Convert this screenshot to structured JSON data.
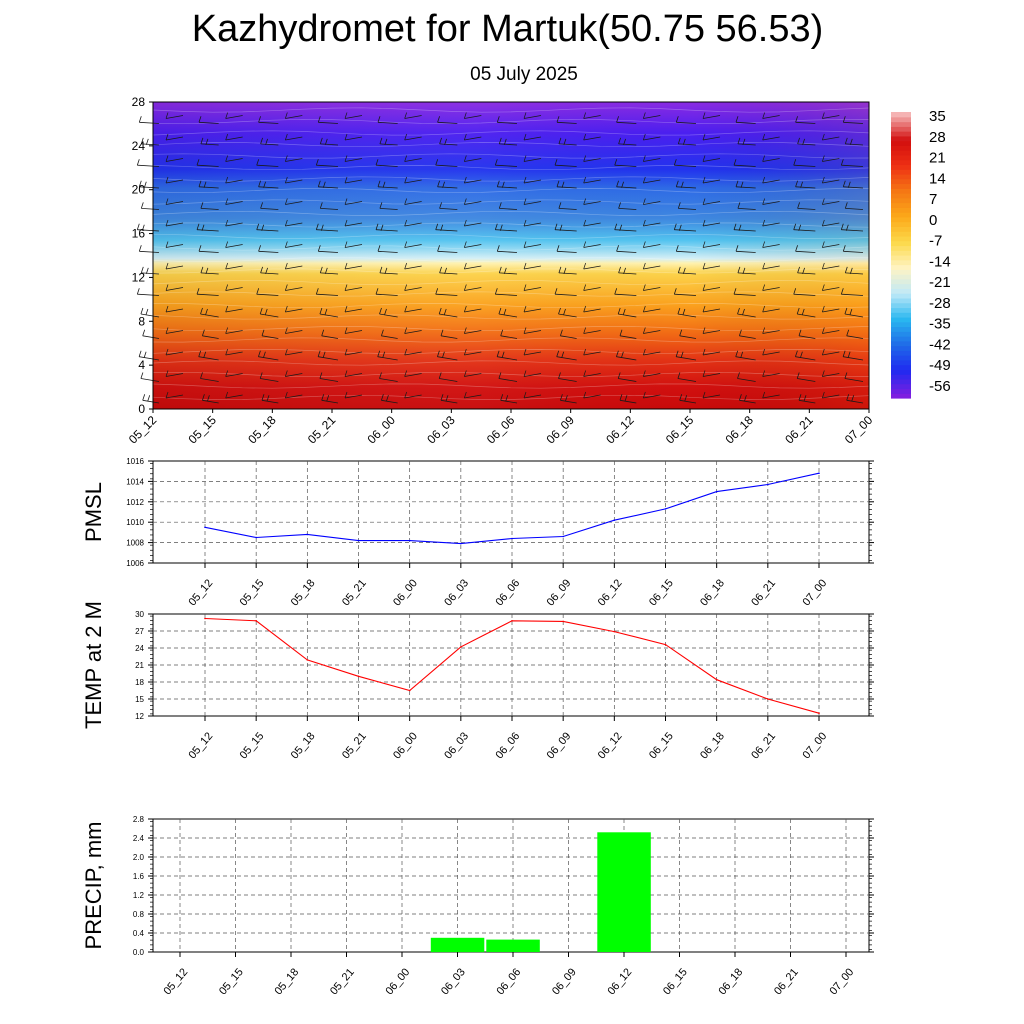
{
  "header": {
    "title": "Kazhydromet for Martuk(50.75 56.53)",
    "subtitle": "05 July 2025"
  },
  "chart_data": [
    {
      "type": "heatmap",
      "title": "",
      "ylim": [
        0,
        28
      ],
      "ytick_labels": [
        "0",
        "4",
        "8",
        "12",
        "16",
        "20",
        "24",
        "28"
      ],
      "x_tick_labels": [
        "05_12",
        "05_15",
        "05_18",
        "05_21",
        "06_00",
        "06_03",
        "06_06",
        "06_09",
        "06_12",
        "06_15",
        "06_18",
        "06_21",
        "07_00"
      ],
      "colorbar_labels": [
        "35",
        "28",
        "21",
        "14",
        "7",
        "0",
        "-7",
        "-14",
        "-21",
        "-28",
        "-35",
        "-42",
        "-49",
        "-56"
      ],
      "color_scale": [
        "#7e1fe0",
        "#1f2af0",
        "#1f6be8",
        "#29b7f0",
        "#bfe9f8",
        "#fff4c4",
        "#fcd94b",
        "#fca91a",
        "#f57814",
        "#ee3014",
        "#d20e0e",
        "#f5b3b3"
      ]
    },
    {
      "type": "line",
      "ylabel": "PMSL",
      "ylim": [
        1006,
        1016
      ],
      "ytick_labels": [
        "1006",
        "1008",
        "1010",
        "1012",
        "1014",
        "1016"
      ],
      "x": [
        "05_12",
        "05_15",
        "05_18",
        "05_21",
        "06_00",
        "06_03",
        "06_06",
        "06_09",
        "06_12",
        "06_15",
        "06_18",
        "06_21",
        "07_00"
      ],
      "series": [
        {
          "color": "#0000ff",
          "values": [
            1009.5,
            1008.5,
            1008.8,
            1008.2,
            1008.2,
            1007.9,
            1008.4,
            1008.6,
            1010.2,
            1011.3,
            1013.0,
            1013.7,
            1014.8
          ]
        }
      ]
    },
    {
      "type": "line",
      "ylabel": "TEMP at 2 M",
      "ylim": [
        12,
        30
      ],
      "ytick_labels": [
        "12",
        "15",
        "18",
        "21",
        "24",
        "27",
        "30"
      ],
      "x": [
        "05_12",
        "05_15",
        "05_18",
        "05_21",
        "06_00",
        "06_03",
        "06_06",
        "06_09",
        "06_12",
        "06_15",
        "06_18",
        "06_21",
        "07_00"
      ],
      "series": [
        {
          "color": "#ff0000",
          "values": [
            29.2,
            28.8,
            21.9,
            19.0,
            16.5,
            24.2,
            28.8,
            28.7,
            26.9,
            24.6,
            18.4,
            15.0,
            12.5
          ]
        }
      ]
    },
    {
      "type": "bar",
      "ylabel": "PRECIP, mm",
      "ylim": [
        0,
        2.8
      ],
      "ytick_labels": [
        "0.0",
        "0.4",
        "0.8",
        "1.2",
        "1.6",
        "2.0",
        "2.4",
        "2.8"
      ],
      "categories": [
        "05_12",
        "05_15",
        "05_18",
        "05_21",
        "06_00",
        "06_03",
        "06_06",
        "06_09",
        "06_12",
        "06_15",
        "06_18",
        "06_21",
        "07_00"
      ],
      "series": [
        {
          "color": "#00ff00",
          "values": [
            0,
            0,
            0,
            0,
            0,
            0.3,
            0.26,
            0,
            2.52,
            0,
            0,
            0,
            0
          ]
        }
      ]
    }
  ]
}
